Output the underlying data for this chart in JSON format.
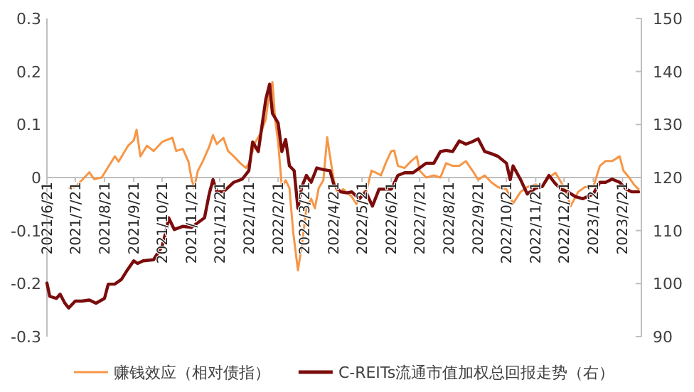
{
  "chart_data": {
    "type": "line",
    "series": [
      {
        "name": "赚钱效应（相对债指）",
        "color": "#f79646",
        "x": [
          "2021-07-15",
          "2021-07-21",
          "2021-07-28",
          "2021-08-05",
          "2021-08-10",
          "2021-08-18",
          "2021-08-25",
          "2021-09-01",
          "2021-09-05",
          "2021-09-15",
          "2021-09-21",
          "2021-09-24",
          "2021-09-28",
          "2021-10-05",
          "2021-10-12",
          "2021-10-21",
          "2021-10-25",
          "2021-11-01",
          "2021-11-05",
          "2021-11-12",
          "2021-11-18",
          "2021-11-21",
          "2021-11-24",
          "2021-11-28",
          "2021-12-03",
          "2021-12-10",
          "2021-12-14",
          "2021-12-18",
          "2021-12-25",
          "2021-12-30",
          "2022-01-05",
          "2022-01-12",
          "2022-01-18",
          "2022-01-21",
          "2022-01-28",
          "2022-02-03",
          "2022-02-08",
          "2022-02-12",
          "2022-02-15",
          "2022-02-18",
          "2022-02-21",
          "2022-02-25",
          "2022-03-01",
          "2022-03-05",
          "2022-03-09",
          "2022-03-14",
          "2022-03-18",
          "2022-03-23",
          "2022-03-28",
          "2022-04-01",
          "2022-04-05",
          "2022-04-10",
          "2022-04-14",
          "2022-04-17",
          "2022-04-21",
          "2022-04-25",
          "2022-05-01",
          "2022-05-10",
          "2022-05-15",
          "2022-05-21",
          "2022-05-26",
          "2022-05-31",
          "2022-06-05",
          "2022-06-10",
          "2022-06-15",
          "2022-06-21",
          "2022-06-24",
          "2022-06-28",
          "2022-07-05",
          "2022-07-12",
          "2022-07-18",
          "2022-07-21",
          "2022-07-28",
          "2022-08-05",
          "2022-08-12",
          "2022-08-18",
          "2022-08-25",
          "2022-09-01",
          "2022-09-08",
          "2022-09-15",
          "2022-09-21",
          "2022-09-28",
          "2022-10-05",
          "2022-10-12",
          "2022-10-21",
          "2022-10-28",
          "2022-11-05",
          "2022-11-12",
          "2022-11-21",
          "2022-11-28",
          "2022-12-05",
          "2022-12-12",
          "2022-12-18",
          "2022-12-24",
          "2022-12-28",
          "2023-01-05",
          "2023-01-12",
          "2023-01-21",
          "2023-01-28",
          "2023-02-03",
          "2023-02-10",
          "2023-02-18",
          "2023-02-22",
          "2023-02-28",
          "2023-03-05",
          "2023-03-10"
        ],
        "values": [
          -0.02,
          -0.018,
          -0.005,
          0.01,
          -0.003,
          0,
          0.02,
          0.04,
          0.03,
          0.06,
          0.07,
          0.09,
          0.04,
          0.06,
          0.05,
          0.067,
          0.07,
          0.075,
          0.05,
          0.054,
          0.03,
          0,
          -0.02,
          0.013,
          0.03,
          0.058,
          0.08,
          0.063,
          0.075,
          0.05,
          0.04,
          0.027,
          0.018,
          0.027,
          0.067,
          0.085,
          0.11,
          0.165,
          0.18,
          0.107,
          0.067,
          -0.018,
          -0.005,
          -0.02,
          -0.103,
          -0.175,
          -0.13,
          -0.058,
          -0.04,
          -0.058,
          -0.02,
          -0.005,
          0.076,
          0.04,
          -0.005,
          -0.03,
          -0.022,
          -0.036,
          -0.05,
          -0.031,
          -0.022,
          0.013,
          0.009,
          0.004,
          0.027,
          0.05,
          0.051,
          0.022,
          0.018,
          0.031,
          0.04,
          0.013,
          0,
          0.004,
          0,
          0.027,
          0.022,
          0.022,
          0.031,
          0.013,
          -0.004,
          0.004,
          -0.009,
          -0.018,
          -0.022,
          -0.049,
          -0.027,
          -0.018,
          -0.013,
          -0.018,
          0,
          0.009,
          -0.009,
          -0.031,
          -0.054,
          -0.027,
          -0.018,
          -0.018,
          0.022,
          0.031,
          0.031,
          0.04,
          0.013,
          0,
          -0.013,
          -0.022
        ]
      },
      {
        "name": "C-REITs流通市值加权总回报走势（右）",
        "color": "#7b0c0c",
        "axis": "y2",
        "x": [
          "2021-06-21",
          "2021-06-24",
          "2021-07-01",
          "2021-07-05",
          "2021-07-10",
          "2021-07-14",
          "2021-07-21",
          "2021-07-28",
          "2021-08-05",
          "2021-08-12",
          "2021-08-21",
          "2021-08-25",
          "2021-09-01",
          "2021-09-08",
          "2021-09-14",
          "2021-09-21",
          "2021-09-25",
          "2021-10-01",
          "2021-10-12",
          "2021-10-21",
          "2021-10-25",
          "2021-10-28",
          "2021-11-03",
          "2021-11-12",
          "2021-11-21",
          "2021-11-28",
          "2021-12-05",
          "2021-12-10",
          "2021-12-14",
          "2021-12-18",
          "2021-12-25",
          "2022-01-05",
          "2022-01-14",
          "2022-01-21",
          "2022-01-25",
          "2022-01-31",
          "2022-02-08",
          "2022-02-12",
          "2022-02-15",
          "2022-02-21",
          "2022-02-25",
          "2022-03-01",
          "2022-03-05",
          "2022-03-10",
          "2022-03-14",
          "2022-03-18",
          "2022-03-23",
          "2022-03-28",
          "2022-04-03",
          "2022-04-10",
          "2022-04-17",
          "2022-04-21",
          "2022-04-28",
          "2022-05-05",
          "2022-05-10",
          "2022-05-18",
          "2022-05-25",
          "2022-06-01",
          "2022-06-08",
          "2022-06-15",
          "2022-06-21",
          "2022-06-28",
          "2022-07-05",
          "2022-07-14",
          "2022-07-21",
          "2022-07-28",
          "2022-08-05",
          "2022-08-12",
          "2022-08-18",
          "2022-08-25",
          "2022-09-01",
          "2022-09-08",
          "2022-09-14",
          "2022-09-21",
          "2022-09-28",
          "2022-10-05",
          "2022-10-12",
          "2022-10-21",
          "2022-10-25",
          "2022-10-28",
          "2022-11-05",
          "2022-11-12",
          "2022-11-21",
          "2022-11-28",
          "2022-12-05",
          "2022-12-12",
          "2022-12-18",
          "2022-12-25",
          "2023-01-02",
          "2023-01-10",
          "2023-01-21",
          "2023-01-28",
          "2023-02-03",
          "2023-02-10",
          "2023-02-18",
          "2023-02-25",
          "2023-03-03",
          "2023-03-10"
        ],
        "values": [
          100.1,
          97.6,
          97.2,
          98,
          96.3,
          95.4,
          96.7,
          96.7,
          96.9,
          96.3,
          97.2,
          99.9,
          99.9,
          100.8,
          102.5,
          104.3,
          103.8,
          104.3,
          104.5,
          107,
          109.7,
          112.4,
          110.2,
          110.8,
          110.6,
          111.5,
          112.4,
          116.9,
          119.6,
          117.3,
          117.3,
          119.1,
          119.7,
          121.3,
          126.7,
          124.9,
          134.8,
          137.6,
          132.1,
          130.3,
          124.9,
          127.2,
          122.2,
          121.3,
          114.2,
          118.2,
          120.4,
          119.1,
          121.8,
          121.5,
          121.3,
          118.7,
          117.3,
          117.1,
          117.3,
          116,
          117.3,
          114.6,
          117.8,
          117.8,
          117.8,
          120.4,
          120.9,
          120.9,
          121.8,
          122.7,
          122.7,
          124.9,
          125.1,
          124.9,
          126.9,
          126.3,
          126.7,
          127.3,
          124.9,
          124.5,
          124,
          122.7,
          119.6,
          122.2,
          119.6,
          116.9,
          118,
          118.3,
          120.4,
          118.8,
          117.8,
          117.3,
          116.4,
          116,
          116.9,
          119.1,
          119.1,
          119.7,
          119.1,
          117.8,
          117.3,
          117.3
        ]
      }
    ],
    "xlim": [
      "2021-06-21",
      "2023-03-13"
    ],
    "xticks": [
      {
        "value": "2021-06-21",
        "label": "2021/6/21"
      },
      {
        "value": "2021-07-21",
        "label": "2021/7/21"
      },
      {
        "value": "2021-08-21",
        "label": "2021/8/21"
      },
      {
        "value": "2021-09-21",
        "label": "2021/9/21"
      },
      {
        "value": "2021-10-21",
        "label": "2021/10/21"
      },
      {
        "value": "2021-11-21",
        "label": "2021/11/21"
      },
      {
        "value": "2021-12-21",
        "label": "2021/12/21"
      },
      {
        "value": "2022-01-21",
        "label": "2022/1/21"
      },
      {
        "value": "2022-02-21",
        "label": "2022/2/21"
      },
      {
        "value": "2022-03-21",
        "label": "2022/3/21"
      },
      {
        "value": "2022-04-21",
        "label": "2022/4/21"
      },
      {
        "value": "2022-05-21",
        "label": "2022/5/21"
      },
      {
        "value": "2022-06-21",
        "label": "2022/6/21"
      },
      {
        "value": "2022-07-21",
        "label": "2022/7/21"
      },
      {
        "value": "2022-08-21",
        "label": "2022/8/21"
      },
      {
        "value": "2022-09-21",
        "label": "2022/9/21"
      },
      {
        "value": "2022-10-21",
        "label": "2022/10/21"
      },
      {
        "value": "2022-11-21",
        "label": "2022/11/21"
      },
      {
        "value": "2022-12-21",
        "label": "2022/12/21"
      },
      {
        "value": "2023-01-21",
        "label": "2023/1/21"
      },
      {
        "value": "2023-02-21",
        "label": "2023/2/21"
      }
    ],
    "ylim": [
      -0.3,
      0.3
    ],
    "yticks": [
      {
        "value": -0.3,
        "label": "-0.3"
      },
      {
        "value": -0.2,
        "label": "-0.2"
      },
      {
        "value": -0.1,
        "label": "-0.1"
      },
      {
        "value": 0,
        "label": "0"
      },
      {
        "value": 0.1,
        "label": "0.1"
      },
      {
        "value": 0.2,
        "label": "0.2"
      },
      {
        "value": 0.3,
        "label": "0.3"
      }
    ],
    "y2lim": [
      90,
      150
    ],
    "y2ticks": [
      90,
      100,
      110,
      120,
      130,
      140,
      150
    ],
    "legend": "bottom"
  }
}
